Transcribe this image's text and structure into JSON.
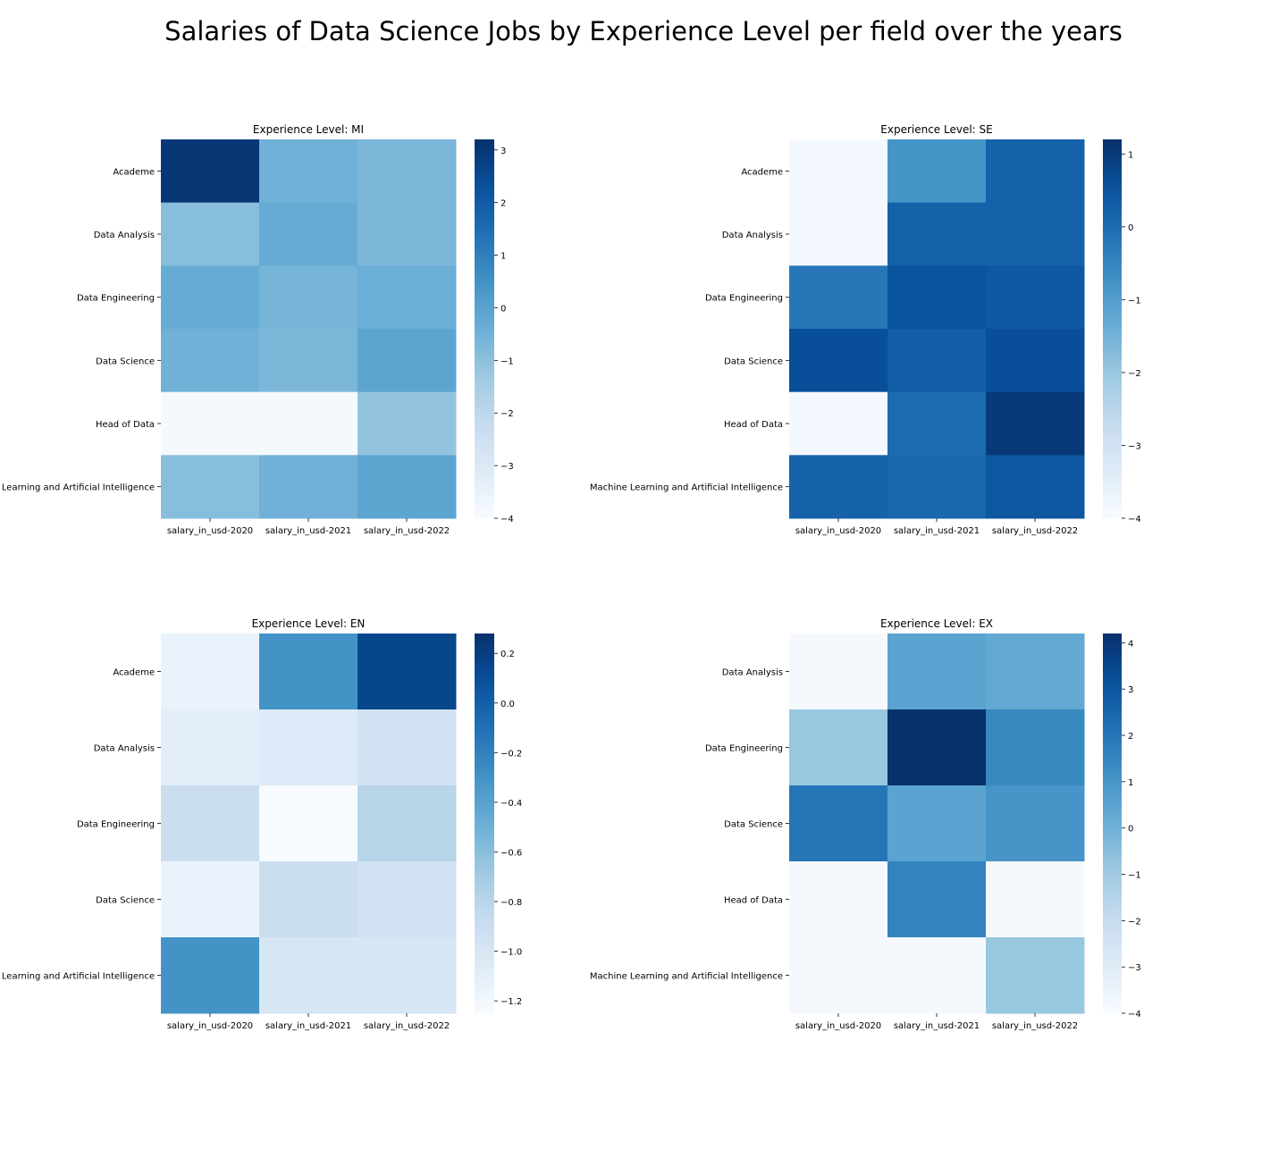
{
  "figure": {
    "title": "Salaries of Data Science Jobs by Experience Level per field over the years"
  },
  "colormap": [
    "#f7fbff",
    "#deebf7",
    "#c6dbef",
    "#9ecae1",
    "#6baed6",
    "#4292c6",
    "#2171b5",
    "#08519c",
    "#08306b"
  ],
  "chart_data": [
    {
      "type": "heatmap",
      "title": "Experience Level: MI",
      "categories_x": [
        "salary_in_usd-2020",
        "salary_in_usd-2021",
        "salary_in_usd-2022"
      ],
      "categories_y": [
        "Academe",
        "Data Analysis",
        "Data Engineering",
        "Data Science",
        "Head of Data",
        "Learning and Artificial Intelligence"
      ],
      "values": [
        [
          3.0,
          -0.5,
          -0.7
        ],
        [
          -0.9,
          -0.3,
          -0.7
        ],
        [
          -0.3,
          -0.6,
          -0.4
        ],
        [
          -0.5,
          -0.7,
          -0.1
        ],
        [
          -3.9,
          -3.9,
          -1.1
        ],
        [
          -0.9,
          -0.5,
          -0.1
        ]
      ],
      "colorbar": {
        "range": [
          -4,
          3.2
        ],
        "ticks": [
          -4,
          -3,
          -2,
          -1,
          0,
          1,
          2,
          3
        ],
        "tick_labels": [
          "−4",
          "−3",
          "−2",
          "−1",
          "0",
          "1",
          "2",
          "3"
        ]
      }
    },
    {
      "type": "heatmap",
      "title": "Experience Level: SE",
      "categories_x": [
        "salary_in_usd-2020",
        "salary_in_usd-2021",
        "salary_in_usd-2022"
      ],
      "categories_y": [
        "Academe",
        "Data Analysis",
        "Data Engineering",
        "Data Science",
        "Head of Data",
        "Machine Learning and Artificial Intelligence"
      ],
      "values": [
        [
          -3.9,
          -0.8,
          0.2
        ],
        [
          -3.9,
          0.2,
          0.2
        ],
        [
          -0.2,
          0.5,
          0.4
        ],
        [
          0.6,
          0.3,
          0.6
        ],
        [
          -3.9,
          0.0,
          1.0
        ],
        [
          0.2,
          0.1,
          0.4
        ]
      ],
      "colorbar": {
        "range": [
          -4,
          1.2
        ],
        "ticks": [
          -4,
          -3,
          -2,
          -1,
          0,
          1
        ],
        "tick_labels": [
          "−4",
          "−3",
          "−2",
          "−1",
          "0",
          "1"
        ]
      }
    },
    {
      "type": "heatmap",
      "title": "Experience Level: EN",
      "categories_x": [
        "salary_in_usd-2020",
        "salary_in_usd-2021",
        "salary_in_usd-2022"
      ],
      "categories_y": [
        "Academe",
        "Data Analysis",
        "Data Engineering",
        "Data Science",
        "Learning and Artificial Intelligence"
      ],
      "values": [
        [
          -1.15,
          -0.3,
          0.15
        ],
        [
          -1.1,
          -1.05,
          -0.95
        ],
        [
          -0.9,
          -1.25,
          -0.8
        ],
        [
          -1.15,
          -0.9,
          -0.95
        ],
        [
          -0.3,
          -1.0,
          -1.0
        ]
      ],
      "colorbar": {
        "range": [
          -1.25,
          0.28
        ],
        "ticks": [
          -1.2,
          -1.0,
          -0.8,
          -0.6,
          -0.4,
          -0.2,
          0.0,
          0.2
        ],
        "tick_labels": [
          "−1.2",
          "−1.0",
          "−0.8",
          "−0.6",
          "−0.4",
          "−0.2",
          "0.0",
          "0.2"
        ]
      }
    },
    {
      "type": "heatmap",
      "title": "Experience Level: EX",
      "categories_x": [
        "salary_in_usd-2020",
        "salary_in_usd-2021",
        "salary_in_usd-2022"
      ],
      "categories_y": [
        "Data Analysis",
        "Data Engineering",
        "Data Science",
        "Head of Data",
        "Machine Learning and Artificial Intelligence"
      ],
      "values": [
        [
          -3.9,
          0.5,
          0.3
        ],
        [
          -0.8,
          4.2,
          1.4
        ],
        [
          2.0,
          0.5,
          1.0
        ],
        [
          -3.9,
          1.6,
          -3.9
        ],
        [
          -3.9,
          -3.9,
          -0.8
        ]
      ],
      "colorbar": {
        "range": [
          -4,
          4.2
        ],
        "ticks": [
          -4,
          -3,
          -2,
          -1,
          0,
          1,
          2,
          3,
          4
        ],
        "tick_labels": [
          "−4",
          "−3",
          "−2",
          "−1",
          "0",
          "1",
          "2",
          "3",
          "4"
        ]
      }
    }
  ]
}
